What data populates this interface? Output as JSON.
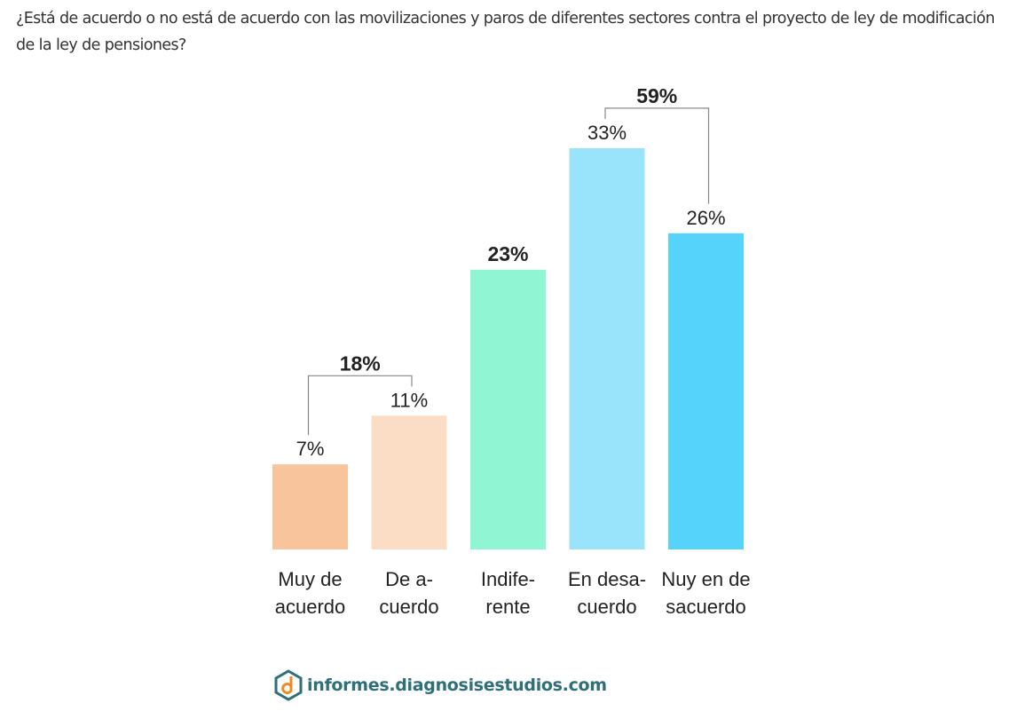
{
  "question": "¿Está de acuerdo o no está de acuerdo con las movilizaciones y paros de diferentes sectores contra el proyecto de ley de modificación de la ley de pensiones?",
  "logo_text": "informes.diagnosisestudios.com",
  "chart_data": {
    "type": "bar",
    "categories": [
      [
        "Muy de",
        "acuerdo"
      ],
      [
        "De a-",
        "cuerdo"
      ],
      [
        "Indife-",
        "rente"
      ],
      [
        "En desa-",
        "cuerdo"
      ],
      [
        "Nuy en de",
        "sacuerdo"
      ]
    ],
    "values": [
      7,
      11,
      23,
      33,
      26
    ],
    "value_labels": [
      "7%",
      "11%",
      "23%",
      "33%",
      "26%"
    ],
    "bold_labels": [
      false,
      false,
      true,
      false,
      false
    ],
    "colors": [
      "#f8c49c",
      "#fbdcc4",
      "#8ff5d3",
      "#9ae4fb",
      "#56d3fb"
    ],
    "ylim": [
      0,
      35
    ],
    "grid": false,
    "brackets": [
      {
        "from": 0,
        "to": 1,
        "label": "18%"
      },
      {
        "from": 3,
        "to": 4,
        "label": "59%"
      }
    ]
  }
}
